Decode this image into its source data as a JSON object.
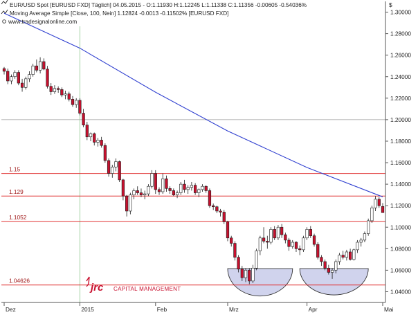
{
  "header": {
    "line1": "EUR/USD Spot [EURUSD FXD]  Täglich] 04.05.2015 - O:1.11930 H:1.12245 L:1.11338 C:1.11356 -0.00605 -0.54036%",
    "line2": "Moving Average Simple [Close, 100, Nein] 1.12824 -0.0013 -0.11502% [EURUSD FXD]",
    "line3": "www.tradesignalonline.com",
    "currency_symbol": "$"
  },
  "watermark": {
    "logo_text": "jrc",
    "company": "CAPITAL MANAGEMENT"
  },
  "colors": {
    "up_candle": "#ffffff",
    "down_candle": "#c8102e",
    "ma_line": "#3040d0",
    "level_line": "#e03030",
    "pattern_fill": "#c8cbea"
  },
  "chart_data": {
    "type": "candlestick",
    "instrument": "EUR/USD Spot [EURUSD FXD]",
    "ylim": [
      1.03,
      1.31
    ],
    "y_ticks": [
      "1.04000",
      "1.06000",
      "1.08000",
      "1.10000",
      "1.12000",
      "1.14000",
      "1.16000",
      "1.18000",
      "1.20000",
      "1.22000",
      "1.24000",
      "1.26000",
      "1.28000",
      "1.30000"
    ],
    "x_tick_labels": [
      "Dez",
      "2015",
      "Feb",
      "Mrz",
      "Apr",
      "Mai"
    ],
    "x_tick_index": [
      0,
      21,
      42,
      62,
      84,
      105
    ],
    "levels": [
      {
        "label": "1.15",
        "value": 1.15
      },
      {
        "label": "1.129",
        "value": 1.129
      },
      {
        "label": "1.1052",
        "value": 1.1052
      },
      {
        "label": "1.04626",
        "value": 1.04626
      }
    ],
    "bars": [
      [
        1.2475,
        1.249,
        1.242,
        1.245
      ],
      [
        1.245,
        1.2475,
        1.233,
        1.236
      ],
      [
        1.236,
        1.242,
        1.233,
        1.24
      ],
      [
        1.24,
        1.246,
        1.238,
        1.244
      ],
      [
        1.244,
        1.246,
        1.232,
        1.234
      ],
      [
        1.234,
        1.238,
        1.226,
        1.23
      ],
      [
        1.23,
        1.24,
        1.228,
        1.238
      ],
      [
        1.238,
        1.245,
        1.235,
        1.242
      ],
      [
        1.242,
        1.252,
        1.24,
        1.25
      ],
      [
        1.25,
        1.256,
        1.244,
        1.246
      ],
      [
        1.246,
        1.258,
        1.243,
        1.254
      ],
      [
        1.254,
        1.257,
        1.246,
        1.247
      ],
      [
        1.247,
        1.25,
        1.229,
        1.231
      ],
      [
        1.231,
        1.234,
        1.223,
        1.226
      ],
      [
        1.226,
        1.232,
        1.224,
        1.229
      ],
      [
        1.229,
        1.231,
        1.225,
        1.228
      ],
      [
        1.228,
        1.23,
        1.221,
        1.223
      ],
      [
        1.223,
        1.227,
        1.219,
        1.224
      ],
      [
        1.224,
        1.226,
        1.217,
        1.219
      ],
      [
        1.219,
        1.222,
        1.212,
        1.214
      ],
      [
        1.214,
        1.22,
        1.211,
        1.218
      ],
      [
        1.218,
        1.22,
        1.204,
        1.206
      ],
      [
        1.206,
        1.21,
        1.193,
        1.195
      ],
      [
        1.195,
        1.198,
        1.181,
        1.184
      ],
      [
        1.184,
        1.188,
        1.18,
        1.187
      ],
      [
        1.187,
        1.188,
        1.176,
        1.179
      ],
      [
        1.179,
        1.183,
        1.175,
        1.181
      ],
      [
        1.181,
        1.184,
        1.174,
        1.176
      ],
      [
        1.176,
        1.178,
        1.16,
        1.162
      ],
      [
        1.162,
        1.164,
        1.147,
        1.15
      ],
      [
        1.15,
        1.158,
        1.146,
        1.156
      ],
      [
        1.156,
        1.164,
        1.152,
        1.161
      ],
      [
        1.161,
        1.162,
        1.142,
        1.144
      ],
      [
        1.144,
        1.145,
        1.125,
        1.129
      ],
      [
        1.129,
        1.13,
        1.11,
        1.115
      ],
      [
        1.115,
        1.132,
        1.112,
        1.13
      ],
      [
        1.13,
        1.136,
        1.126,
        1.134
      ],
      [
        1.134,
        1.138,
        1.13,
        1.132
      ],
      [
        1.132,
        1.136,
        1.128,
        1.13
      ],
      [
        1.13,
        1.134,
        1.126,
        1.131
      ],
      [
        1.131,
        1.14,
        1.129,
        1.138
      ],
      [
        1.138,
        1.153,
        1.136,
        1.15
      ],
      [
        1.15,
        1.153,
        1.131,
        1.135
      ],
      [
        1.135,
        1.137,
        1.13,
        1.133
      ],
      [
        1.133,
        1.15,
        1.131,
        1.145
      ],
      [
        1.145,
        1.148,
        1.133,
        1.136
      ],
      [
        1.136,
        1.138,
        1.131,
        1.134
      ],
      [
        1.134,
        1.136,
        1.129,
        1.13
      ],
      [
        1.13,
        1.134,
        1.127,
        1.132
      ],
      [
        1.132,
        1.142,
        1.13,
        1.14
      ],
      [
        1.14,
        1.144,
        1.132,
        1.135
      ],
      [
        1.135,
        1.139,
        1.131,
        1.137
      ],
      [
        1.137,
        1.142,
        1.134,
        1.139
      ],
      [
        1.139,
        1.141,
        1.13,
        1.132
      ],
      [
        1.132,
        1.136,
        1.128,
        1.135
      ],
      [
        1.135,
        1.14,
        1.133,
        1.138
      ],
      [
        1.138,
        1.139,
        1.132,
        1.134
      ],
      [
        1.134,
        1.136,
        1.118,
        1.12
      ],
      [
        1.12,
        1.122,
        1.116,
        1.119
      ],
      [
        1.119,
        1.12,
        1.113,
        1.115
      ],
      [
        1.115,
        1.117,
        1.11,
        1.114
      ],
      [
        1.114,
        1.116,
        1.103,
        1.105
      ],
      [
        1.105,
        1.106,
        1.087,
        1.09
      ],
      [
        1.09,
        1.092,
        1.082,
        1.085
      ],
      [
        1.085,
        1.087,
        1.069,
        1.072
      ],
      [
        1.072,
        1.074,
        1.058,
        1.061
      ],
      [
        1.061,
        1.064,
        1.05,
        1.053
      ],
      [
        1.053,
        1.062,
        1.049,
        1.06
      ],
      [
        1.06,
        1.062,
        1.047,
        1.05
      ],
      [
        1.05,
        1.065,
        1.048,
        1.062
      ],
      [
        1.062,
        1.08,
        1.06,
        1.078
      ],
      [
        1.078,
        1.092,
        1.074,
        1.09
      ],
      [
        1.09,
        1.1,
        1.085,
        1.087
      ],
      [
        1.087,
        1.092,
        1.08,
        1.086
      ],
      [
        1.086,
        1.1,
        1.084,
        1.098
      ],
      [
        1.098,
        1.101,
        1.088,
        1.09
      ],
      [
        1.09,
        1.102,
        1.088,
        1.1
      ],
      [
        1.1,
        1.103,
        1.09,
        1.093
      ],
      [
        1.093,
        1.095,
        1.085,
        1.088
      ],
      [
        1.088,
        1.09,
        1.078,
        1.082
      ],
      [
        1.082,
        1.088,
        1.08,
        1.086
      ],
      [
        1.086,
        1.087,
        1.077,
        1.08
      ],
      [
        1.08,
        1.083,
        1.074,
        1.079
      ],
      [
        1.079,
        1.092,
        1.077,
        1.09
      ],
      [
        1.09,
        1.1,
        1.088,
        1.098
      ],
      [
        1.098,
        1.101,
        1.09,
        1.092
      ],
      [
        1.092,
        1.094,
        1.082,
        1.084
      ],
      [
        1.084,
        1.086,
        1.07,
        1.072
      ],
      [
        1.072,
        1.074,
        1.064,
        1.068
      ],
      [
        1.068,
        1.07,
        1.06,
        1.062
      ],
      [
        1.062,
        1.065,
        1.056,
        1.058
      ],
      [
        1.058,
        1.062,
        1.052,
        1.06
      ],
      [
        1.06,
        1.07,
        1.057,
        1.068
      ],
      [
        1.068,
        1.076,
        1.065,
        1.074
      ],
      [
        1.074,
        1.078,
        1.07,
        1.072
      ],
      [
        1.072,
        1.079,
        1.069,
        1.077
      ],
      [
        1.077,
        1.08,
        1.069,
        1.07
      ],
      [
        1.07,
        1.08,
        1.069,
        1.079
      ],
      [
        1.079,
        1.088,
        1.076,
        1.086
      ],
      [
        1.086,
        1.09,
        1.082,
        1.088
      ],
      [
        1.088,
        1.096,
        1.086,
        1.094
      ],
      [
        1.094,
        1.108,
        1.092,
        1.106
      ],
      [
        1.106,
        1.12,
        1.104,
        1.118
      ],
      [
        1.118,
        1.129,
        1.115,
        1.126
      ],
      [
        1.126,
        1.128,
        1.118,
        1.12
      ],
      [
        1.1193,
        1.12245,
        1.11338,
        1.11356
      ]
    ],
    "moving_average": {
      "name": "Moving Average Simple [Close, 100, Nein]",
      "points": [
        [
          0,
          1.299
        ],
        [
          21,
          1.2665
        ],
        [
          42,
          1.2255
        ],
        [
          62,
          1.1895
        ],
        [
          84,
          1.1555
        ],
        [
          105,
          1.1282
        ]
      ]
    },
    "pattern_markers": [
      {
        "start_index": 62,
        "end_index": 80,
        "top": 1.0615,
        "bottom": 1.036
      },
      {
        "start_index": 82,
        "end_index": 101,
        "top": 1.0615,
        "bottom": 1.037
      }
    ]
  }
}
